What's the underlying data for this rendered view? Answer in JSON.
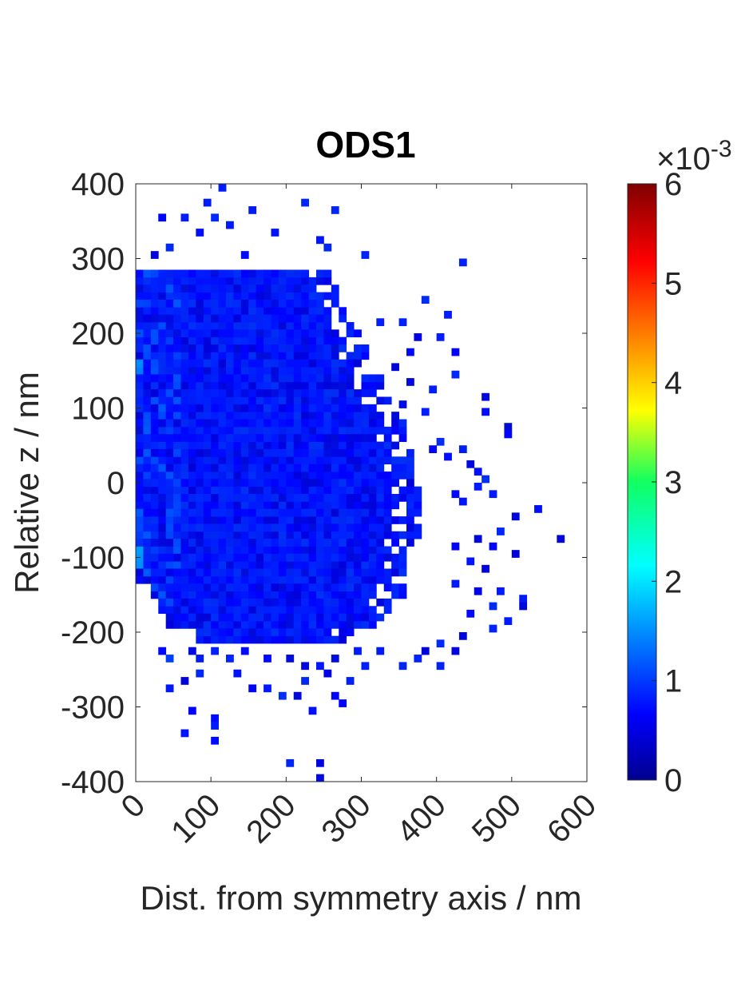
{
  "chart_data": {
    "type": "heatmap",
    "title": "ODS1",
    "xlabel": "Dist. from symmetry axis / nm",
    "ylabel": "Relative z / nm",
    "xlim": [
      0,
      600
    ],
    "ylim": [
      -400,
      400
    ],
    "x_ticks": [
      "0",
      "100",
      "200",
      "300",
      "400",
      "500",
      "600"
    ],
    "y_ticks": [
      "400",
      "300",
      "200",
      "100",
      "0",
      "-100",
      "-200",
      "-300",
      "-400"
    ],
    "bin_size_nm": 10,
    "colormap": "jet",
    "colorbar": {
      "min": 0,
      "max": 0.006,
      "exponent_label": "×10",
      "exponent_power": "-3",
      "tick_labels": [
        "6",
        "5",
        "4",
        "3",
        "2",
        "1",
        "0"
      ]
    },
    "density_description": "Most occupied bins have values near 0.0001–0.0005; slightly higher values (~0.0008–0.001) appear along the symmetry axis (x≈0–10 nm) near z≈-100 and z≈160 nm.",
    "core_region_rows": [
      {
        "z": 275,
        "x": [
          0,
          255
        ]
      },
      {
        "z": 255,
        "x": [
          0,
          265
        ]
      },
      {
        "z": 235,
        "x": [
          0,
          280
        ]
      },
      {
        "z": 215,
        "x": [
          0,
          295
        ]
      },
      {
        "z": 195,
        "x": [
          0,
          305
        ]
      },
      {
        "z": 175,
        "x": [
          0,
          310
        ]
      },
      {
        "z": 155,
        "x": [
          0,
          315
        ]
      },
      {
        "z": 135,
        "x": [
          0,
          325
        ]
      },
      {
        "z": 115,
        "x": [
          0,
          335
        ]
      },
      {
        "z": 95,
        "x": [
          0,
          345
        ]
      },
      {
        "z": 75,
        "x": [
          0,
          355
        ]
      },
      {
        "z": 55,
        "x": [
          0,
          360
        ]
      },
      {
        "z": 35,
        "x": [
          0,
          365
        ]
      },
      {
        "z": 15,
        "x": [
          0,
          370
        ]
      },
      {
        "z": -5,
        "x": [
          0,
          375
        ]
      },
      {
        "z": -25,
        "x": [
          0,
          375
        ]
      },
      {
        "z": -45,
        "x": [
          0,
          375
        ]
      },
      {
        "z": -65,
        "x": [
          0,
          375
        ]
      },
      {
        "z": -85,
        "x": [
          0,
          370
        ]
      },
      {
        "z": -105,
        "x": [
          0,
          365
        ]
      },
      {
        "z": -125,
        "x": [
          0,
          360
        ]
      },
      {
        "z": -145,
        "x": [
          20,
          355
        ]
      },
      {
        "z": -165,
        "x": [
          30,
          345
        ]
      },
      {
        "z": -185,
        "x": [
          40,
          330
        ]
      },
      {
        "z": -205,
        "x": [
          80,
          300
        ]
      }
    ],
    "scattered_bins": [
      [
        115,
        395
      ],
      [
        95,
        375
      ],
      [
        225,
        375
      ],
      [
        265,
        365
      ],
      [
        155,
        365
      ],
      [
        35,
        355
      ],
      [
        65,
        355
      ],
      [
        105,
        355
      ],
      [
        125,
        345
      ],
      [
        85,
        335
      ],
      [
        185,
        335
      ],
      [
        245,
        325
      ],
      [
        45,
        315
      ],
      [
        25,
        305
      ],
      [
        145,
        305
      ],
      [
        255,
        315
      ],
      [
        305,
        305
      ],
      [
        435,
        295
      ],
      [
        385,
        245
      ],
      [
        415,
        225
      ],
      [
        325,
        215
      ],
      [
        355,
        215
      ],
      [
        375,
        195
      ],
      [
        405,
        195
      ],
      [
        425,
        175
      ],
      [
        365,
        175
      ],
      [
        425,
        145
      ],
      [
        345,
        155
      ],
      [
        365,
        135
      ],
      [
        395,
        125
      ],
      [
        355,
        105
      ],
      [
        385,
        95
      ],
      [
        465,
        115
      ],
      [
        465,
        95
      ],
      [
        495,
        75
      ],
      [
        495,
        65
      ],
      [
        405,
        55
      ],
      [
        395,
        45
      ],
      [
        415,
        35
      ],
      [
        435,
        45
      ],
      [
        445,
        25
      ],
      [
        455,
        15
      ],
      [
        465,
        5
      ],
      [
        455,
        -5
      ],
      [
        475,
        -15
      ],
      [
        425,
        -15
      ],
      [
        435,
        -25
      ],
      [
        505,
        -45
      ],
      [
        535,
        -35
      ],
      [
        565,
        -75
      ],
      [
        485,
        -65
      ],
      [
        455,
        -75
      ],
      [
        425,
        -85
      ],
      [
        475,
        -85
      ],
      [
        505,
        -95
      ],
      [
        445,
        -105
      ],
      [
        465,
        -115
      ],
      [
        425,
        -135
      ],
      [
        455,
        -145
      ],
      [
        485,
        -145
      ],
      [
        515,
        -155
      ],
      [
        475,
        -165
      ],
      [
        515,
        -165
      ],
      [
        445,
        -175
      ],
      [
        495,
        -185
      ],
      [
        475,
        -195
      ],
      [
        435,
        -205
      ],
      [
        405,
        -215
      ],
      [
        385,
        -225
      ],
      [
        425,
        -225
      ],
      [
        375,
        -235
      ],
      [
        355,
        -245
      ],
      [
        405,
        -245
      ],
      [
        325,
        -225
      ],
      [
        295,
        -225
      ],
      [
        265,
        -235
      ],
      [
        245,
        -245
      ],
      [
        225,
        -245
      ],
      [
        205,
        -235
      ],
      [
        175,
        -235
      ],
      [
        145,
        -225
      ],
      [
        125,
        -235
      ],
      [
        105,
        -225
      ],
      [
        85,
        -235
      ],
      [
        75,
        -225
      ],
      [
        35,
        -225
      ],
      [
        45,
        -235
      ],
      [
        85,
        -255
      ],
      [
        65,
        -265
      ],
      [
        45,
        -275
      ],
      [
        175,
        -275
      ],
      [
        195,
        -285
      ],
      [
        215,
        -285
      ],
      [
        265,
        -285
      ],
      [
        275,
        -295
      ],
      [
        235,
        -305
      ],
      [
        155,
        -275
      ],
      [
        75,
        -305
      ],
      [
        105,
        -315
      ],
      [
        105,
        -325
      ],
      [
        65,
        -335
      ],
      [
        105,
        -345
      ],
      [
        205,
        -375
      ],
      [
        245,
        -375
      ],
      [
        245,
        -395
      ],
      [
        285,
        -265
      ],
      [
        225,
        -265
      ],
      [
        135,
        -255
      ],
      [
        305,
        -245
      ],
      [
        255,
        -255
      ]
    ],
    "holes_in_core": [
      [
        45,
        255
      ],
      [
        125,
        245
      ],
      [
        185,
        215
      ],
      [
        265,
        175
      ],
      [
        25,
        145
      ],
      [
        55,
        105
      ],
      [
        15,
        65
      ],
      [
        35,
        25
      ],
      [
        285,
        5
      ],
      [
        345,
        -5
      ],
      [
        25,
        -15
      ],
      [
        65,
        -45
      ],
      [
        135,
        -115
      ],
      [
        245,
        -75
      ],
      [
        325,
        -95
      ],
      [
        75,
        -155
      ],
      [
        15,
        -125
      ],
      [
        195,
        -185
      ],
      [
        305,
        -165
      ],
      [
        345,
        -175
      ],
      [
        95,
        -195
      ],
      [
        155,
        -175
      ],
      [
        255,
        -195
      ]
    ]
  }
}
